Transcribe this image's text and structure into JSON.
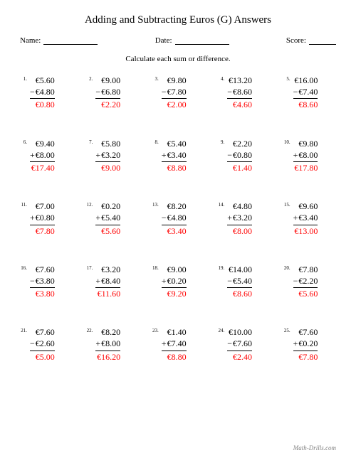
{
  "title": "Adding and Subtracting Euros (G) Answers",
  "labels": {
    "name": "Name:",
    "date": "Date:",
    "score": "Score:"
  },
  "instruction": "Calculate each sum or difference.",
  "footer": "Math-Drills.com",
  "answer_color": "#ff0000",
  "problems": [
    {
      "n": "1.",
      "a": "€5.60",
      "op": "−",
      "b": "€4.80",
      "ans": "€0.80"
    },
    {
      "n": "2.",
      "a": "€9.00",
      "op": "−",
      "b": "€6.80",
      "ans": "€2.20"
    },
    {
      "n": "3.",
      "a": "€9.80",
      "op": "−",
      "b": "€7.80",
      "ans": "€2.00"
    },
    {
      "n": "4.",
      "a": "€13.20",
      "op": "−",
      "b": "€8.60",
      "ans": "€4.60"
    },
    {
      "n": "5.",
      "a": "€16.00",
      "op": "−",
      "b": "€7.40",
      "ans": "€8.60"
    },
    {
      "n": "6.",
      "a": "€9.40",
      "op": "+",
      "b": "€8.00",
      "ans": "€17.40"
    },
    {
      "n": "7.",
      "a": "€5.80",
      "op": "+",
      "b": "€3.20",
      "ans": "€9.00"
    },
    {
      "n": "8.",
      "a": "€5.40",
      "op": "+",
      "b": "€3.40",
      "ans": "€8.80"
    },
    {
      "n": "9.",
      "a": "€2.20",
      "op": "−",
      "b": "€0.80",
      "ans": "€1.40"
    },
    {
      "n": "10.",
      "a": "€9.80",
      "op": "+",
      "b": "€8.00",
      "ans": "€17.80"
    },
    {
      "n": "11.",
      "a": "€7.00",
      "op": "+",
      "b": "€0.80",
      "ans": "€7.80"
    },
    {
      "n": "12.",
      "a": "€0.20",
      "op": "+",
      "b": "€5.40",
      "ans": "€5.60"
    },
    {
      "n": "13.",
      "a": "€8.20",
      "op": "−",
      "b": "€4.80",
      "ans": "€3.40"
    },
    {
      "n": "14.",
      "a": "€4.80",
      "op": "+",
      "b": "€3.20",
      "ans": "€8.00"
    },
    {
      "n": "15.",
      "a": "€9.60",
      "op": "+",
      "b": "€3.40",
      "ans": "€13.00"
    },
    {
      "n": "16.",
      "a": "€7.60",
      "op": "−",
      "b": "€3.80",
      "ans": "€3.80"
    },
    {
      "n": "17.",
      "a": "€3.20",
      "op": "+",
      "b": "€8.40",
      "ans": "€11.60"
    },
    {
      "n": "18.",
      "a": "€9.00",
      "op": "+",
      "b": "€0.20",
      "ans": "€9.20"
    },
    {
      "n": "19.",
      "a": "€14.00",
      "op": "−",
      "b": "€5.40",
      "ans": "€8.60"
    },
    {
      "n": "20.",
      "a": "€7.80",
      "op": "−",
      "b": "€2.20",
      "ans": "€5.60"
    },
    {
      "n": "21.",
      "a": "€7.60",
      "op": "−",
      "b": "€2.60",
      "ans": "€5.00"
    },
    {
      "n": "22.",
      "a": "€8.20",
      "op": "+",
      "b": "€8.00",
      "ans": "€16.20"
    },
    {
      "n": "23.",
      "a": "€1.40",
      "op": "+",
      "b": "€7.40",
      "ans": "€8.80"
    },
    {
      "n": "24.",
      "a": "€10.00",
      "op": "−",
      "b": "€7.60",
      "ans": "€2.40"
    },
    {
      "n": "25.",
      "a": "€7.60",
      "op": "+",
      "b": "€0.20",
      "ans": "€7.80"
    }
  ]
}
